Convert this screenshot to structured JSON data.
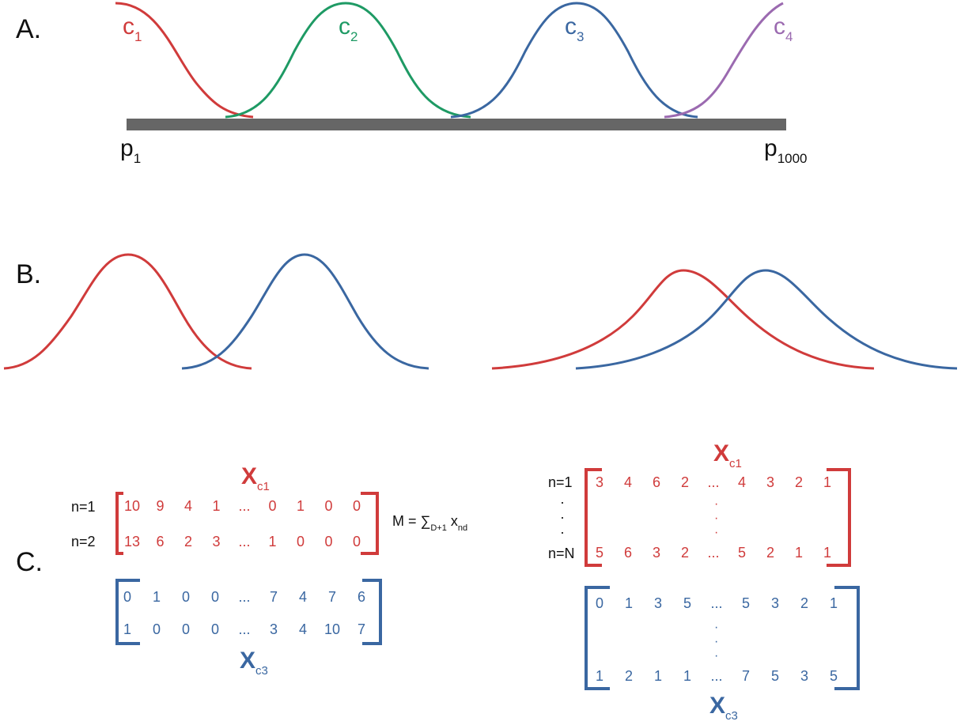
{
  "colors": {
    "red": "#d03b3b",
    "green": "#1e9a64",
    "blue": "#3a67a1",
    "purple": "#9b6ab0",
    "bar": "#666666",
    "text": "#111111"
  },
  "panel_a": {
    "label": "A.",
    "curves": [
      {
        "base": "c",
        "sub": "1"
      },
      {
        "base": "c",
        "sub": "2"
      },
      {
        "base": "c",
        "sub": "3"
      },
      {
        "base": "c",
        "sub": "4"
      }
    ],
    "axis_start": {
      "base": "p",
      "sub": "1"
    },
    "axis_end": {
      "base": "p",
      "sub": "1000"
    }
  },
  "panel_b": {
    "label": "B."
  },
  "panel_c": {
    "label": "C.",
    "formula": {
      "lhs": "M = ",
      "sigma": "∑",
      "sigma_sub": "D+1",
      "term": " x",
      "term_sub": "nd"
    },
    "left": {
      "top_matrix": {
        "name": {
          "base": "X",
          "sub": "c1"
        },
        "row_labels": [
          "n=1",
          "n=2"
        ],
        "rows": [
          [
            "10",
            "9",
            "4",
            "1",
            "...",
            "0",
            "1",
            "0",
            "0"
          ],
          [
            "13",
            "6",
            "2",
            "3",
            "...",
            "1",
            "0",
            "0",
            "0"
          ]
        ]
      },
      "bottom_matrix": {
        "name": {
          "base": "X",
          "sub": "c3"
        },
        "rows": [
          [
            "0",
            "1",
            "0",
            "0",
            "...",
            "7",
            "4",
            "7",
            "6"
          ],
          [
            "1",
            "0",
            "0",
            "0",
            "...",
            "3",
            "4",
            "10",
            "7"
          ]
        ]
      }
    },
    "right": {
      "top_matrix": {
        "name": {
          "base": "X",
          "sub": "c1"
        },
        "row_labels": [
          "n=1",
          "n=N"
        ],
        "rows": [
          [
            "3",
            "4",
            "6",
            "2",
            "...",
            "4",
            "3",
            "2",
            "1"
          ],
          [
            "5",
            "6",
            "3",
            "2",
            "...",
            "5",
            "2",
            "1",
            "1"
          ]
        ]
      },
      "bottom_matrix": {
        "name": {
          "base": "X",
          "sub": "c3"
        },
        "rows": [
          [
            "0",
            "1",
            "3",
            "5",
            "...",
            "5",
            "3",
            "2",
            "1"
          ],
          [
            "1",
            "2",
            "1",
            "1",
            "...",
            "7",
            "5",
            "3",
            "5"
          ]
        ]
      },
      "vdots": "·"
    }
  }
}
